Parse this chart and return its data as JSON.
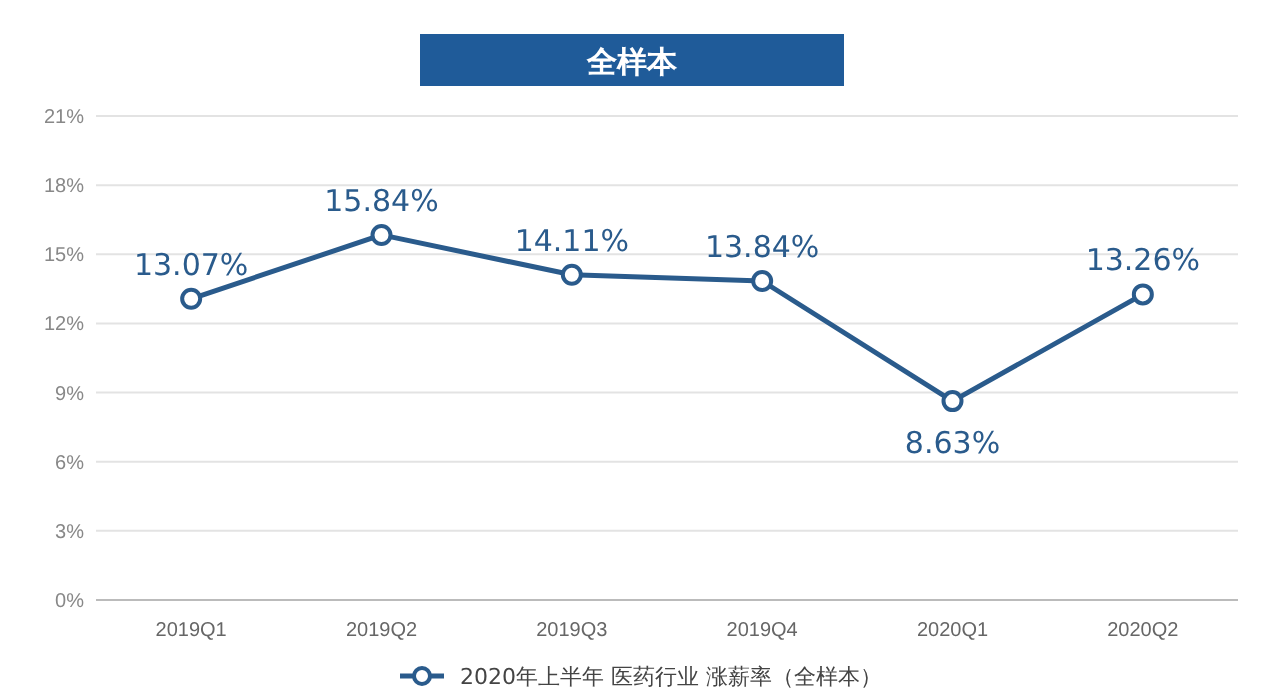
{
  "chart_data": {
    "type": "line",
    "title": "全样本",
    "categories": [
      "2019Q1",
      "2019Q2",
      "2019Q3",
      "2019Q4",
      "2020Q1",
      "2020Q2"
    ],
    "series": [
      {
        "name": "2020年上半年 医药行业 涨薪率（全样本）",
        "color": "#2a5b8c",
        "values": [
          13.07,
          15.84,
          14.11,
          13.84,
          8.63,
          13.26
        ],
        "value_labels": [
          "13.07%",
          "15.84%",
          "14.11%",
          "13.84%",
          "8.63%",
          "13.26%"
        ]
      }
    ],
    "ylim": [
      0,
      21
    ],
    "yticks": [
      {
        "value": 0,
        "label": "0%"
      },
      {
        "value": 3,
        "label": "3%"
      },
      {
        "value": 6,
        "label": "6%"
      },
      {
        "value": 9,
        "label": "9%"
      },
      {
        "value": 12,
        "label": "12%"
      },
      {
        "value": 15,
        "label": "15%"
      },
      {
        "value": 18,
        "label": "18%"
      },
      {
        "value": 21,
        "label": "21%"
      }
    ],
    "grid": "y",
    "legend": "bottom",
    "marker": "circle",
    "line_style": "solid"
  }
}
